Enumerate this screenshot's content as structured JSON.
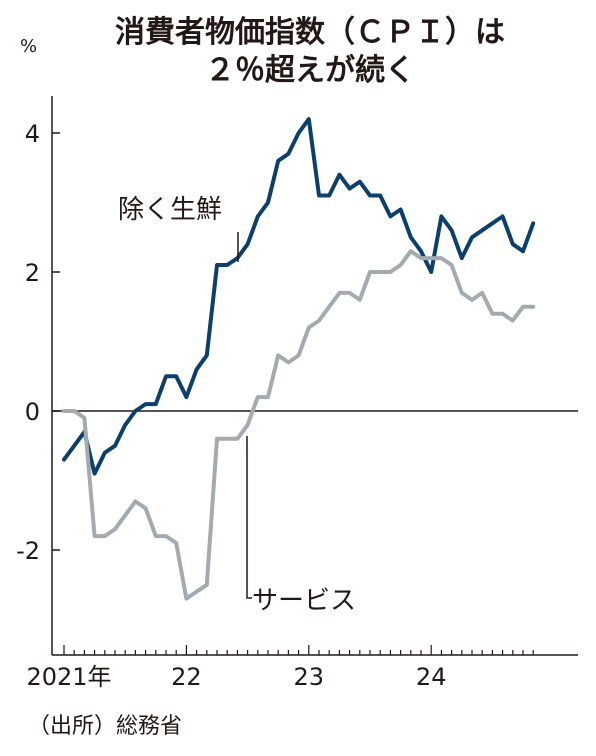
{
  "chart_data": {
    "type": "line",
    "title_line1": "消費者物価指数（ＣＰＩ）は",
    "title_line2": "２％超えが続く",
    "unit": "%",
    "source": "（出所）総務省",
    "x_tick_labels": [
      "2021年",
      "22",
      "23",
      "24"
    ],
    "x_tick_years": [
      2021,
      2022,
      2023,
      2024
    ],
    "y_ticks": [
      -2,
      0,
      2,
      4
    ],
    "y_tick_labels": [
      "-2",
      "0",
      "2",
      "4"
    ],
    "ylim": [
      -3.4,
      4.8
    ],
    "x_start_year": 2021,
    "x_end": "2024-11",
    "series": [
      {
        "name": "除く生鮮",
        "color": "#0c3f6b",
        "values": [
          -0.7,
          -0.5,
          -0.3,
          -0.9,
          -0.6,
          -0.5,
          -0.2,
          0.0,
          0.1,
          0.1,
          0.5,
          0.5,
          0.2,
          0.6,
          0.8,
          2.1,
          2.1,
          2.2,
          2.4,
          2.8,
          3.0,
          3.6,
          3.7,
          4.0,
          4.2,
          3.1,
          3.1,
          3.4,
          3.2,
          3.3,
          3.1,
          3.1,
          2.8,
          2.9,
          2.5,
          2.3,
          2.0,
          2.8,
          2.6,
          2.2,
          2.5,
          2.6,
          2.7,
          2.8,
          2.4,
          2.3,
          2.7
        ]
      },
      {
        "name": "サービス",
        "color": "#a3aab0",
        "values": [
          0.0,
          0.0,
          -0.1,
          -1.8,
          -1.8,
          -1.7,
          -1.5,
          -1.3,
          -1.4,
          -1.8,
          -1.8,
          -1.9,
          -2.7,
          -2.6,
          -2.5,
          -0.4,
          -0.4,
          -0.4,
          -0.2,
          0.2,
          0.2,
          0.8,
          0.7,
          0.8,
          1.2,
          1.3,
          1.5,
          1.7,
          1.7,
          1.6,
          2.0,
          2.0,
          2.0,
          2.1,
          2.3,
          2.2,
          2.2,
          2.2,
          2.1,
          1.7,
          1.6,
          1.7,
          1.4,
          1.4,
          1.3,
          1.5,
          1.5
        ]
      }
    ]
  }
}
